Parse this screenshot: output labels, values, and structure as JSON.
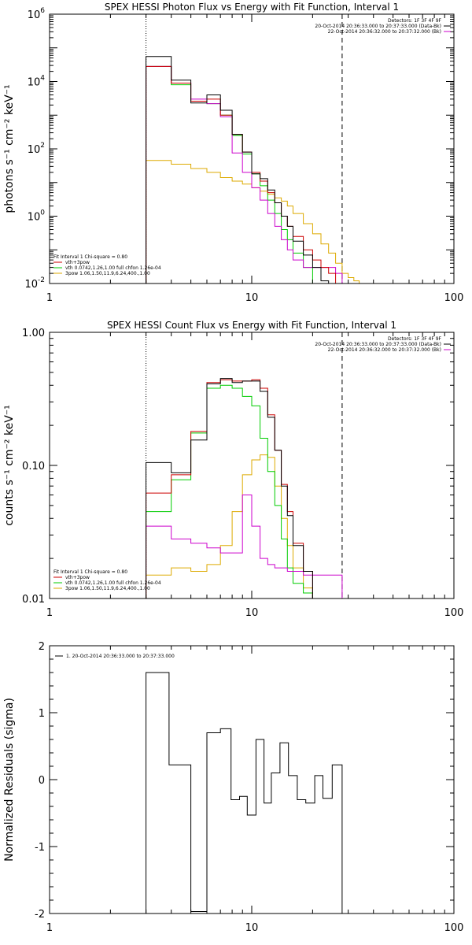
{
  "chart_data": [
    {
      "type": "line",
      "step": true,
      "scale": "log-log",
      "title": "SPEX HESSI Photon Flux vs Energy with Fit Function, Interval 1",
      "ylabel": "photons s⁻¹ cm⁻² keV⁻¹",
      "xlabel": "",
      "xlim": [
        1,
        100
      ],
      "ylim": [
        0.01,
        1000000
      ],
      "x_ticks": [
        "1",
        "10",
        "100"
      ],
      "y_ticks": [
        {
          "base": "10",
          "exp": "-2",
          "value": 0.01
        },
        {
          "base": "10",
          "exp": "0",
          "value": 1
        },
        {
          "base": "10",
          "exp": "2",
          "value": 100
        },
        {
          "base": "10",
          "exp": "4",
          "value": 10000
        },
        {
          "base": "10",
          "exp": "6",
          "value": 1000000
        }
      ],
      "vlines": [
        {
          "x": 3.0,
          "style": "dotted"
        },
        {
          "x": 28.0,
          "style": "dashed"
        }
      ],
      "legend_top": [
        "Detectors: 1F 3F 4F 9F",
        "20-Oct-2014 20:36:33.000 to 20:37:33.000 (Data-Bk)",
        "22-Oct-2014 20:36:32.000 to 20:37:32.000 (Bk)"
      ],
      "legend_top_colors": [
        "",
        "#000000",
        "#cc00cc"
      ],
      "fit_title": "Fit Interval  1    Chi-square = 0.80",
      "fit_items": [
        {
          "label": "vth+3pow",
          "color": "#cc0000"
        },
        {
          "label": "vth 0.0742,1.26,1.00  full chfon 1.26e-04",
          "color": "#00cc00"
        },
        {
          "label": "3pow 1.06,1.50,11.9,6.24,400.,1.00",
          "color": "#ddaa00"
        }
      ],
      "edges": [
        3.0,
        4.0,
        5.0,
        6.0,
        7.0,
        8.0,
        9.0,
        10.0,
        11.0,
        12.0,
        13.0,
        14.0,
        15.0,
        16.0,
        18.0,
        20.0,
        22.0,
        24.0,
        26.0,
        28.0
      ],
      "series": [
        {
          "color": "#000000",
          "values": [
            55000,
            11000,
            2300,
            4000,
            1400,
            270,
            80,
            18,
            13,
            6,
            2.5,
            1.0,
            0.5,
            0.18,
            0.07,
            0.03,
            0.012,
            null,
            null
          ]
        },
        {
          "color": "#cc00cc",
          "values": [
            28000,
            9000,
            3000,
            2200,
            900,
            75,
            20,
            7,
            3,
            1.2,
            0.5,
            0.2,
            0.1,
            0.05,
            0.03,
            0.03,
            0.03,
            0.03,
            0.02
          ]
        },
        {
          "color": "#cc0000",
          "values": [
            28000,
            9000,
            2600,
            3000,
            1000,
            270,
            80,
            20,
            11,
            5,
            2.5,
            1.0,
            0.5,
            0.25,
            0.1,
            0.05,
            0.03,
            0.02,
            null
          ]
        }
      ],
      "green_edges": [
        3.0,
        4.0,
        5.0,
        6.0,
        7.0,
        8.0,
        9.0,
        10.0,
        11.0,
        12.0,
        13.0,
        14.0,
        15.0,
        16.0,
        18.0,
        20.0,
        22.0
      ],
      "green_values": [
        28000,
        8000,
        2600,
        2200,
        1000,
        250,
        70,
        18,
        8,
        3,
        1.2,
        0.4,
        0.2,
        0.08,
        0.03,
        0.01
      ],
      "yellow_edges": [
        3.0,
        4.0,
        5.0,
        6.0,
        7.0,
        8.0,
        9.0,
        10.0,
        11.0,
        12.0,
        13.0,
        14.0,
        15.0,
        16.0,
        18.0,
        20.0,
        22.0,
        24.0,
        26.0,
        28.0,
        30.0,
        32.0,
        34.0,
        36.0
      ],
      "yellow_values": [
        45,
        35,
        26,
        20,
        14,
        11,
        9,
        7,
        5.5,
        4.5,
        3.5,
        2.8,
        2,
        1.2,
        0.6,
        0.3,
        0.15,
        0.08,
        0.04,
        0.02,
        0.015,
        0.012,
        0.01
      ]
    },
    {
      "type": "line",
      "step": true,
      "scale": "log-log",
      "title": "SPEX HESSI Count Flux vs Energy with Fit Function, Interval 1",
      "ylabel": "counts s⁻¹ cm⁻² keV⁻¹",
      "xlabel": "",
      "xlim": [
        1,
        100
      ],
      "ylim": [
        0.01,
        1.0
      ],
      "x_ticks": [
        "1",
        "10",
        "100"
      ],
      "y_ticks": [
        {
          "label": "0.01",
          "value": 0.01
        },
        {
          "label": "0.10",
          "value": 0.1
        },
        {
          "label": "1.00",
          "value": 1.0
        }
      ],
      "vlines": [
        {
          "x": 3.0,
          "style": "dotted"
        },
        {
          "x": 28.0,
          "style": "dashed"
        }
      ],
      "legend_top": [
        "Detectors: 1F 3F 4F 9F",
        "20-Oct-2014 20:36:33.000 to 20:37:33.000 (Data-Bk)",
        "22-Oct-2014 20:36:32.000 to 20:37:32.000 (Bk)"
      ],
      "legend_top_colors": [
        "",
        "#000000",
        "#cc00cc"
      ],
      "fit_title": "Fit Interval  1    Chi-square = 0.80",
      "fit_items": [
        {
          "label": "vth+3pow",
          "color": "#cc0000"
        },
        {
          "label": "vth 0.0742,1.26,1.00  full chfon 1.26e-04",
          "color": "#00cc00"
        },
        {
          "label": "3pow 1.06,1.50,11.9,6.24,400.,1.00",
          "color": "#ddaa00"
        }
      ],
      "edges": [
        3.0,
        4.0,
        5.0,
        6.0,
        7.0,
        8.0,
        9.0,
        10.0,
        11.0,
        12.0,
        13.0,
        14.0,
        15.0,
        16.0,
        18.0,
        20.0,
        22.0,
        24.0,
        26.0,
        28.0
      ],
      "series": [
        {
          "color": "#000000",
          "values": [
            0.105,
            0.088,
            0.155,
            0.41,
            0.45,
            0.42,
            0.43,
            0.43,
            0.36,
            0.23,
            0.13,
            0.07,
            0.042,
            0.025,
            0.016,
            0.01,
            null,
            null,
            null
          ]
        },
        {
          "color": "#cc00cc",
          "values": [
            0.035,
            0.028,
            0.026,
            0.024,
            0.022,
            0.022,
            0.06,
            0.035,
            0.02,
            0.018,
            0.017,
            0.017,
            0.016,
            0.016,
            0.015,
            0.015,
            0.015,
            0.015,
            0.015
          ]
        },
        {
          "color": "#cc0000",
          "values": [
            0.062,
            0.085,
            0.18,
            0.42,
            0.44,
            0.43,
            0.43,
            0.44,
            0.38,
            0.24,
            0.13,
            0.072,
            0.045,
            0.026,
            0.016,
            0.01,
            null,
            null,
            null
          ]
        }
      ],
      "green_edges": [
        3.0,
        4.0,
        5.0,
        6.0,
        7.0,
        8.0,
        9.0,
        10.0,
        11.0,
        12.0,
        13.0,
        14.0,
        15.0,
        16.0,
        18.0,
        20.0,
        22.0
      ],
      "green_values": [
        0.045,
        0.078,
        0.175,
        0.38,
        0.4,
        0.38,
        0.33,
        0.28,
        0.16,
        0.09,
        0.05,
        0.028,
        0.017,
        0.013,
        0.011,
        0.01
      ],
      "yellow_edges": [
        3.0,
        4.0,
        5.0,
        6.0,
        7.0,
        8.0,
        9.0,
        10.0,
        11.0,
        12.0,
        13.0,
        14.0,
        15.0,
        16.0,
        18.0,
        20.0,
        22.0,
        24.0,
        26.0,
        28.0
      ],
      "yellow_values": [
        0.015,
        0.017,
        0.016,
        0.018,
        0.025,
        0.045,
        0.085,
        0.11,
        0.12,
        0.115,
        0.07,
        0.04,
        0.025,
        0.017,
        0.012,
        0.01,
        0.01,
        0.01,
        0.01
      ]
    },
    {
      "type": "line",
      "step": true,
      "scale": "log-x",
      "title": "",
      "ylabel": "Normalized Residuals (sigma)",
      "xlabel": "",
      "xlim": [
        1,
        100
      ],
      "ylim": [
        -2,
        2
      ],
      "x_ticks": [
        "1",
        "10",
        "100"
      ],
      "y_ticks": [
        {
          "label": "-2",
          "value": -2
        },
        {
          "label": "-1",
          "value": -1
        },
        {
          "label": "0",
          "value": 0
        },
        {
          "label": "1",
          "value": 1
        },
        {
          "label": "2",
          "value": 2
        }
      ],
      "legend": "1. 20-Oct-2014 20:36:33.000 to 20:37:33.000",
      "edges": [
        3.0,
        3.9,
        5.0,
        6.0,
        7.0,
        7.9,
        8.7,
        9.5,
        10.5,
        11.5,
        12.5,
        13.8,
        15.2,
        16.8,
        18.5,
        20.5,
        22.5,
        25.0,
        28.0
      ],
      "values": [
        1.6,
        0.22,
        -1.97,
        0.7,
        0.76,
        -0.3,
        -0.25,
        -0.53,
        0.6,
        -0.35,
        0.1,
        0.55,
        0.06,
        -0.3,
        -0.35,
        0.06,
        -0.28,
        0.22
      ]
    }
  ]
}
